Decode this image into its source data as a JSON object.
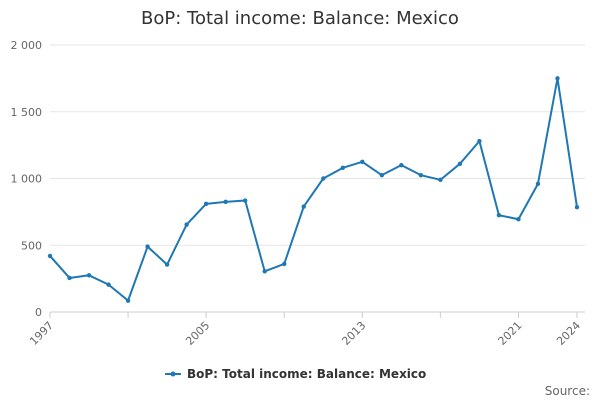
{
  "chart_data": {
    "type": "line",
    "title": "BoP: Total income: Balance: Mexico",
    "xlabel": "",
    "ylabel": "",
    "x": [
      1997,
      1998,
      1999,
      2000,
      2001,
      2002,
      2003,
      2004,
      2005,
      2006,
      2007,
      2008,
      2009,
      2010,
      2011,
      2012,
      2013,
      2014,
      2015,
      2016,
      2017,
      2018,
      2019,
      2020,
      2021,
      2022,
      2023,
      2024
    ],
    "x_tick_labels": [
      "1997",
      "2005",
      "2013",
      "2021",
      "2024"
    ],
    "x_tick_values": [
      1997,
      2005,
      2013,
      2021,
      2024
    ],
    "xlim": [
      1997,
      2024
    ],
    "ylim": [
      0,
      2000
    ],
    "y_ticks": [
      0,
      500,
      1000,
      1500,
      2000
    ],
    "y_tick_labels": [
      "0",
      "500",
      "1 000",
      "1 500",
      "2 000"
    ],
    "grid": true,
    "legend_position": "bottom-center",
    "series": [
      {
        "name": "BoP: Total income: Balance: Mexico",
        "color": "#1f77b4",
        "values": [
          420,
          255,
          275,
          205,
          85,
          490,
          355,
          655,
          810,
          825,
          835,
          305,
          360,
          790,
          1000,
          1080,
          1125,
          1025,
          1100,
          1025,
          990,
          1110,
          1280,
          725,
          695,
          960,
          1750,
          785
        ]
      }
    ],
    "source_label": "Source:"
  }
}
